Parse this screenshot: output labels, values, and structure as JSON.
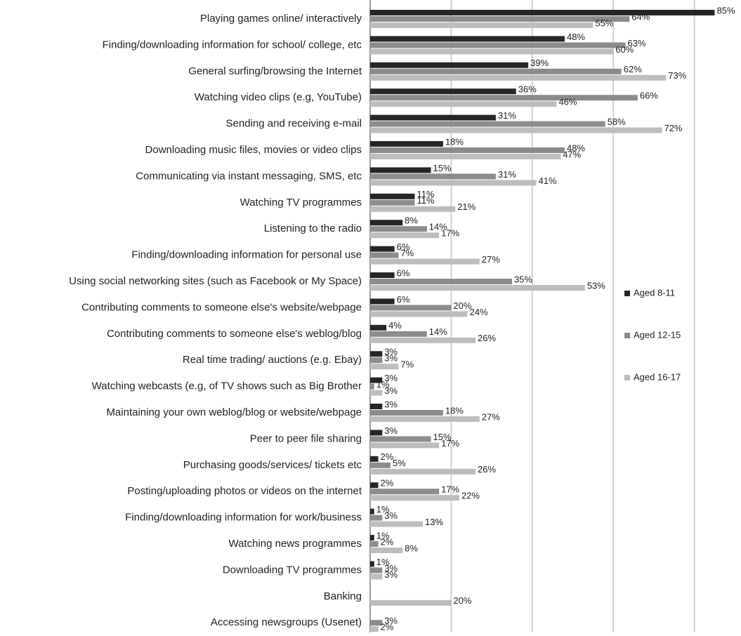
{
  "chart_data": {
    "type": "hbar",
    "categories": [
      "Playing games online/ interactively",
      "Finding/downloading information for school/ college, etc",
      "General surfing/browsing the Internet",
      "Watching video clips (e.g, YouTube)",
      "Sending and receiving e-mail",
      "Downloading music files, movies or video clips",
      "Communicating via instant messaging, SMS, etc",
      "Watching TV programmes",
      "Listening to the radio",
      "Finding/downloading information for personal use",
      "Using social networking sites (such as Facebook or My Space)",
      "Contributing comments to someone else's website/webpage",
      "Contributing comments to someone else's weblog/blog",
      "Real time trading/ auctions (e.g. Ebay)",
      "Watching webcasts (e.g, of TV shows such as Big Brother",
      "Maintaining your own weblog/blog or website/webpage",
      "Peer to peer file sharing",
      "Purchasing goods/services/ tickets etc",
      "Posting/uploading photos or videos on the internet",
      "Finding/downloading information for work/business",
      "Watching news programmes",
      "Downloading TV programmes",
      "Banking",
      "Accessing newsgroups (Usenet)"
    ],
    "series": [
      {
        "name": "Aged 8-11",
        "color": "#262626",
        "values": [
          85,
          48,
          39,
          36,
          31,
          18,
          15,
          11,
          8,
          6,
          6,
          6,
          4,
          3,
          3,
          3,
          3,
          2,
          2,
          1,
          1,
          1,
          null,
          null
        ],
        "value_labels": [
          "85%",
          "48%",
          "39%",
          "36%",
          "31%",
          "18%",
          "15%",
          "11%",
          "8%",
          "6%",
          "6%",
          "6%",
          "4%",
          "3%",
          "3%",
          "3%",
          "3%",
          "2%",
          "2%",
          "1%",
          "1%",
          "1%",
          null,
          null
        ]
      },
      {
        "name": "Aged 12-15",
        "color": "#8c8c8c",
        "values": [
          64,
          63,
          62,
          66,
          58,
          48,
          31,
          11,
          14,
          7,
          35,
          20,
          14,
          3,
          1,
          18,
          15,
          5,
          17,
          3,
          2,
          3,
          null,
          3
        ],
        "value_labels": [
          "64%",
          "63%",
          "62%",
          "66%",
          "58%",
          "48%",
          "31%",
          "11%",
          "14%",
          "7%",
          "35%",
          "20%",
          "14%",
          "3%",
          "1%",
          "18%",
          "15%",
          "5%",
          "17%",
          "3%",
          "2%",
          "3%",
          null,
          "3%"
        ]
      },
      {
        "name": "Aged 16-17",
        "color": "#bdbdbd",
        "values": [
          55,
          60,
          73,
          46,
          72,
          47,
          41,
          21,
          17,
          27,
          53,
          24,
          26,
          7,
          3,
          27,
          17,
          26,
          22,
          13,
          8,
          3,
          20,
          2
        ],
        "value_labels": [
          "55%",
          "60%",
          "73%",
          "46%",
          "72%",
          "47%",
          "41%",
          "21%",
          "17%",
          "27%",
          "53%",
          "24%",
          "26%",
          "7%",
          "3%",
          "27%",
          "17%",
          "26%",
          "22%",
          "13%",
          "8%",
          "3%",
          "20%",
          "2%"
        ]
      }
    ],
    "xlim": [
      0,
      91.5
    ],
    "xticks": [
      0,
      20,
      40,
      60,
      80
    ],
    "grid": true,
    "legend": "right"
  }
}
